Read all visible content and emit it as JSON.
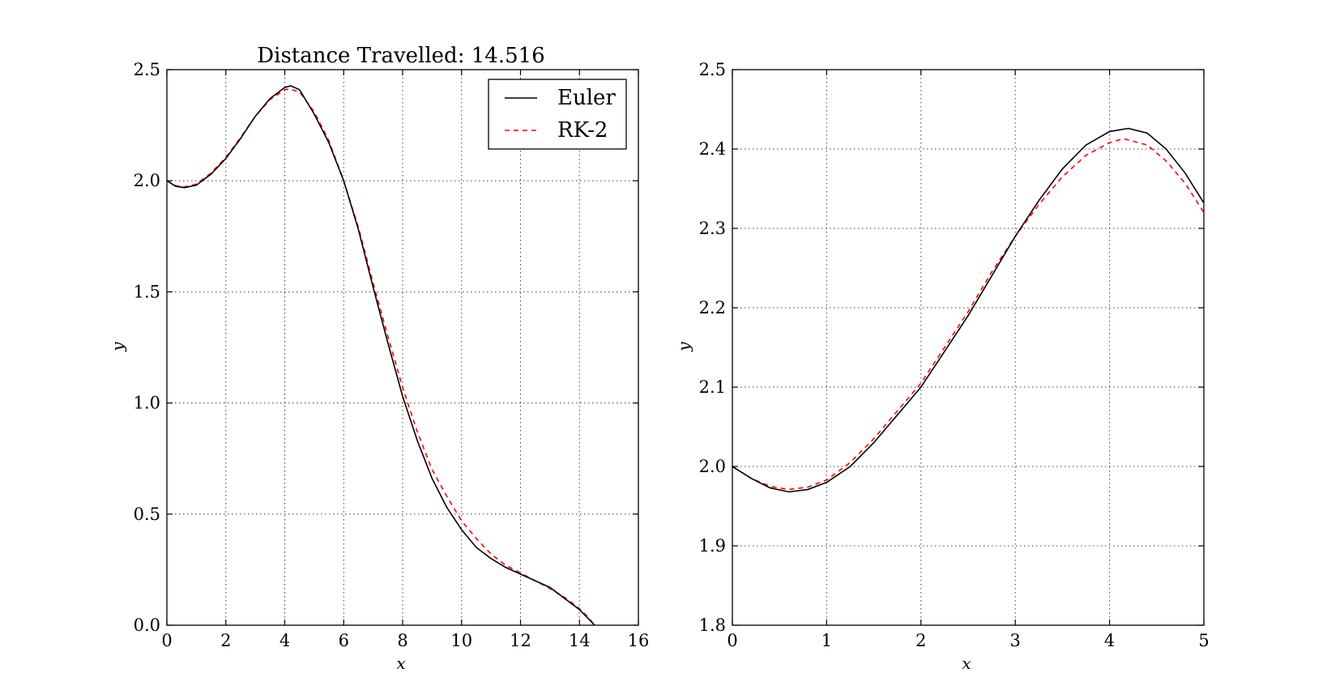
{
  "chart_data": [
    {
      "type": "line",
      "title": "Distance Travelled: 14.516",
      "xlabel": "x",
      "ylabel": "y",
      "xlim": [
        0,
        16
      ],
      "ylim": [
        0.0,
        2.5
      ],
      "xticks": [
        0,
        2,
        4,
        6,
        8,
        10,
        12,
        14,
        16
      ],
      "yticks": [
        0.0,
        0.5,
        1.0,
        1.5,
        2.0,
        2.5
      ],
      "xtick_labels": [
        "0",
        "2",
        "4",
        "6",
        "8",
        "10",
        "12",
        "14",
        "16"
      ],
      "ytick_labels": [
        "0.0",
        "0.5",
        "1.0",
        "1.5",
        "2.0",
        "2.5"
      ],
      "grid": true,
      "legend": "top-right",
      "series": [
        {
          "name": "Euler",
          "color": "#000000",
          "style": "solid",
          "x": [
            0,
            0.3,
            0.6,
            1.0,
            1.5,
            2.0,
            2.5,
            3.0,
            3.5,
            4.0,
            4.2,
            4.5,
            5.0,
            5.5,
            6.0,
            6.5,
            7.0,
            7.5,
            8.0,
            8.5,
            9.0,
            9.5,
            10.0,
            10.5,
            11.0,
            11.5,
            12.0,
            12.5,
            13.0,
            13.5,
            14.0,
            14.3,
            14.516
          ],
          "y": [
            2.0,
            1.975,
            1.969,
            1.98,
            2.03,
            2.1,
            2.19,
            2.29,
            2.37,
            2.42,
            2.427,
            2.41,
            2.3,
            2.17,
            2.0,
            1.78,
            1.52,
            1.27,
            1.03,
            0.83,
            0.66,
            0.53,
            0.43,
            0.35,
            0.3,
            0.26,
            0.23,
            0.2,
            0.17,
            0.12,
            0.07,
            0.03,
            0.0
          ]
        },
        {
          "name": "RK-2",
          "color": "#ff0000",
          "style": "dashed",
          "x": [
            0,
            0.3,
            0.6,
            1.0,
            1.5,
            2.0,
            2.5,
            3.0,
            3.5,
            4.0,
            4.15,
            4.5,
            5.0,
            5.5,
            6.0,
            6.5,
            7.0,
            7.5,
            8.0,
            8.5,
            9.0,
            9.5,
            10.0,
            10.5,
            11.0,
            11.5,
            12.0,
            12.5,
            13.0,
            13.5,
            14.0,
            14.3,
            14.52
          ],
          "y": [
            2.0,
            1.978,
            1.972,
            1.985,
            2.035,
            2.105,
            2.195,
            2.29,
            2.365,
            2.41,
            2.413,
            2.4,
            2.31,
            2.18,
            2.0,
            1.79,
            1.54,
            1.3,
            1.07,
            0.87,
            0.7,
            0.58,
            0.47,
            0.39,
            0.32,
            0.27,
            0.235,
            0.2,
            0.165,
            0.125,
            0.075,
            0.035,
            0.0
          ]
        }
      ]
    },
    {
      "type": "line",
      "title": "",
      "xlabel": "x",
      "ylabel": "y",
      "xlim": [
        0,
        5
      ],
      "ylim": [
        1.8,
        2.5
      ],
      "xticks": [
        0,
        1,
        2,
        3,
        4,
        5
      ],
      "yticks": [
        1.8,
        1.9,
        2.0,
        2.1,
        2.2,
        2.3,
        2.4,
        2.5
      ],
      "xtick_labels": [
        "0",
        "1",
        "2",
        "3",
        "4",
        "5"
      ],
      "ytick_labels": [
        "1.8",
        "1.9",
        "2.0",
        "2.1",
        "2.2",
        "2.3",
        "2.4",
        "2.5"
      ],
      "grid": true,
      "series": [
        {
          "name": "Euler",
          "color": "#000000",
          "style": "solid",
          "x": [
            0,
            0.2,
            0.4,
            0.6,
            0.8,
            1.0,
            1.25,
            1.5,
            1.75,
            2.0,
            2.25,
            2.5,
            2.75,
            3.0,
            3.25,
            3.5,
            3.75,
            4.0,
            4.2,
            4.4,
            4.6,
            4.8,
            5.0
          ],
          "y": [
            2.0,
            1.985,
            1.973,
            1.968,
            1.971,
            1.98,
            2.0,
            2.03,
            2.065,
            2.1,
            2.145,
            2.19,
            2.24,
            2.29,
            2.335,
            2.375,
            2.405,
            2.422,
            2.426,
            2.42,
            2.4,
            2.37,
            2.332
          ]
        },
        {
          "name": "RK-2",
          "color": "#ff0000",
          "style": "dashed",
          "x": [
            0,
            0.2,
            0.4,
            0.6,
            0.8,
            1.0,
            1.25,
            1.5,
            1.75,
            2.0,
            2.25,
            2.5,
            2.75,
            3.0,
            3.25,
            3.5,
            3.75,
            4.0,
            4.15,
            4.4,
            4.6,
            4.8,
            5.0
          ],
          "y": [
            2.0,
            1.985,
            1.975,
            1.971,
            1.974,
            1.983,
            2.005,
            2.035,
            2.07,
            2.105,
            2.15,
            2.195,
            2.245,
            2.29,
            2.33,
            2.365,
            2.392,
            2.408,
            2.413,
            2.405,
            2.385,
            2.357,
            2.32
          ]
        }
      ]
    }
  ]
}
